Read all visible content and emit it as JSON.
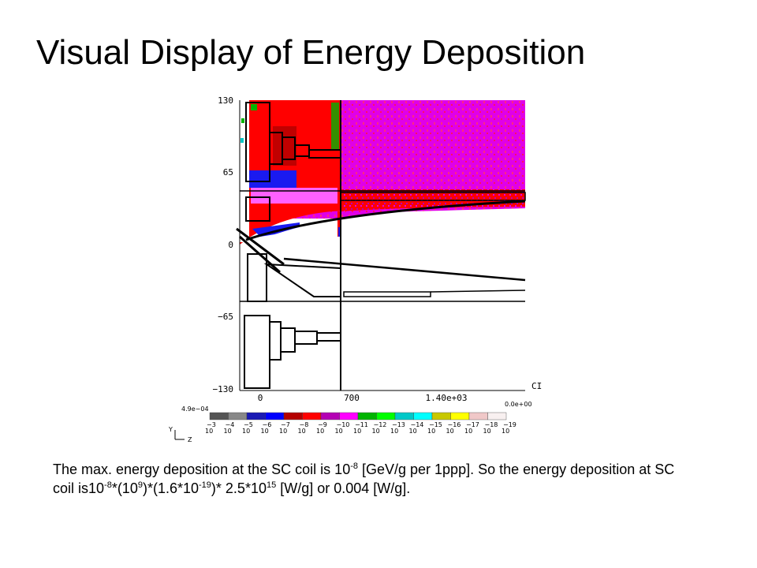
{
  "title": "Visual Display of Energy Deposition",
  "chart_data": {
    "type": "heatmap",
    "y_ticks": [
      "130",
      "65",
      "0",
      "−65",
      "−130"
    ],
    "x_ticks": [
      "0",
      "700",
      "1.40e+03"
    ],
    "x_axis_tag": "CI",
    "colorbar": {
      "max_label": "4.9e−04",
      "min_label": "0.0e+00",
      "colors": [
        "#555555",
        "#888888",
        "#1a1ab4",
        "#0000ff",
        "#b40000",
        "#ff0000",
        "#b400b4",
        "#ff00ff",
        "#00b400",
        "#00ff00",
        "#00c8c8",
        "#00ffff",
        "#c8c800",
        "#ffff00",
        "#f0c8c8",
        "#f8f0f0"
      ],
      "exponents": [
        "−3",
        "−4",
        "−5",
        "−6",
        "−7",
        "−8",
        "−9",
        "−10",
        "−11",
        "−12",
        "−13",
        "−14",
        "−15",
        "−16",
        "−17",
        "−18",
        "−19"
      ]
    },
    "axes_marker": {
      "y": "Y",
      "z": "Z"
    }
  },
  "caption": {
    "p1": "The max. energy deposition at the SC coil is 10",
    "e1": "-8",
    "p2": " [GeV/g per 1ppp]. So the energy deposition at SC coil is10",
    "e2": "-8",
    "p3": "*(10",
    "e3": "9",
    "p4": ")*(1.6*10",
    "e4": "-19",
    "p5": ")*  2.5*10",
    "e5": "15",
    "p6": " [W/g] or 0.004 [W/g]."
  }
}
